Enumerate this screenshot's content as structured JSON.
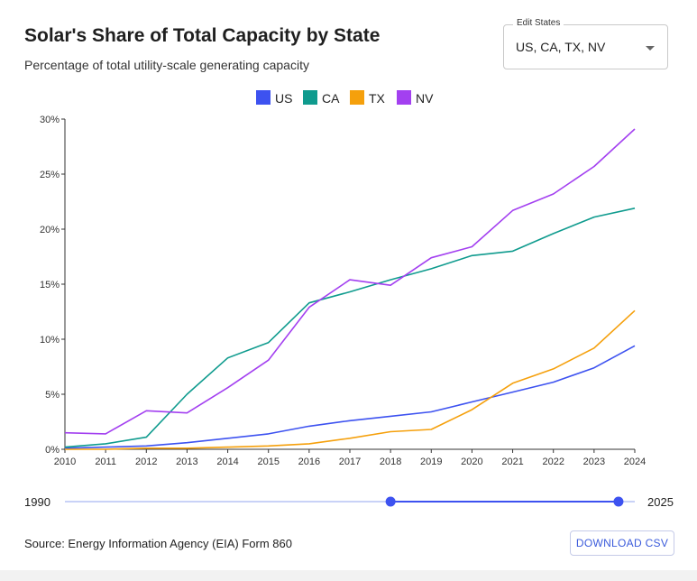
{
  "header": {
    "title": "Solar's Share of Total Capacity by State",
    "subtitle": "Percentage of total utility-scale generating capacity"
  },
  "edit_states": {
    "label": "Edit States",
    "value": "US, CA, TX, NV",
    "icon": "chevron-down-icon"
  },
  "slider": {
    "min_label": "1990",
    "max_label": "2025",
    "min": 1990,
    "max": 2025,
    "range_start": 2010,
    "range_end": 2024
  },
  "footer": {
    "source": "Source: Energy Information Agency (EIA) Form 860",
    "download_label": "DOWNLOAD CSV"
  },
  "chart_data": {
    "type": "line",
    "title": "Solar's Share of Total Capacity by State",
    "xlabel": "",
    "ylabel": "",
    "x": [
      2010,
      2011,
      2012,
      2013,
      2014,
      2015,
      2016,
      2017,
      2018,
      2019,
      2020,
      2021,
      2022,
      2023,
      2024
    ],
    "ylim": [
      0,
      30
    ],
    "yticks": [
      0,
      5,
      10,
      15,
      20,
      25,
      30
    ],
    "ytick_labels": [
      "0%",
      "5%",
      "10%",
      "15%",
      "20%",
      "25%",
      "30%"
    ],
    "grid": false,
    "legend": "top-center",
    "series": [
      {
        "name": "US",
        "color": "#3d52f0",
        "values": [
          0.1,
          0.2,
          0.3,
          0.6,
          1.0,
          1.4,
          2.1,
          2.6,
          3.0,
          3.4,
          4.3,
          5.2,
          6.1,
          7.4,
          9.4
        ]
      },
      {
        "name": "CA",
        "color": "#0f9b8e",
        "values": [
          0.2,
          0.5,
          1.1,
          5.0,
          8.3,
          9.7,
          13.3,
          14.3,
          15.4,
          16.4,
          17.6,
          18.0,
          19.6,
          21.1,
          21.9
        ]
      },
      {
        "name": "TX",
        "color": "#f5a00c",
        "values": [
          0.0,
          0.0,
          0.1,
          0.1,
          0.2,
          0.3,
          0.5,
          1.0,
          1.6,
          1.8,
          3.6,
          6.0,
          7.3,
          9.2,
          12.6
        ]
      },
      {
        "name": "NV",
        "color": "#a340f0",
        "values": [
          1.5,
          1.4,
          3.5,
          3.3,
          5.6,
          8.1,
          12.9,
          15.4,
          14.9,
          17.4,
          18.4,
          21.7,
          23.2,
          25.7,
          29.1
        ]
      }
    ]
  }
}
